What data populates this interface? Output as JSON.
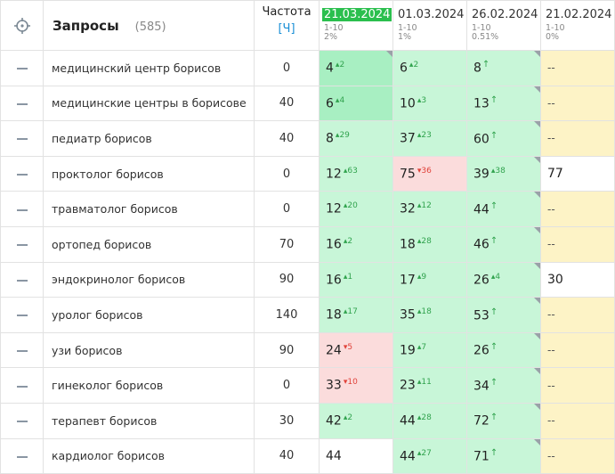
{
  "header": {
    "title": "Запросы",
    "count": "(585)",
    "freq_title": "Частота",
    "freq_unit": "[Ч]",
    "dates": [
      {
        "date": "21.03.2024",
        "range": "1-10",
        "pct": "2%",
        "active": true
      },
      {
        "date": "01.03.2024",
        "range": "1-10",
        "pct": "1%",
        "active": false
      },
      {
        "date": "26.02.2024",
        "range": "1-10",
        "pct": "0.51%",
        "active": false
      },
      {
        "date": "21.02.2024",
        "range": "1-10",
        "pct": "0%",
        "active": false
      }
    ]
  },
  "colors": {
    "top3": "#a8efc2",
    "top10": "#c8f6d8",
    "worse": "#fbdcdc",
    "nodata": "#fdf3c6",
    "plain": "#ffffff"
  },
  "rows": [
    {
      "query": "медицинский центр борисов",
      "freq": "0",
      "cells": [
        {
          "pos": "4",
          "delta": "2",
          "dir": "up",
          "bg": "top3",
          "tri": true
        },
        {
          "pos": "6",
          "delta": "2",
          "dir": "up",
          "bg": "top10",
          "tri": false
        },
        {
          "pos": "8",
          "delta": "",
          "dir": "arrow",
          "bg": "top10",
          "tri": true
        },
        {
          "pos": "--",
          "delta": "",
          "dir": "",
          "bg": "nodata",
          "tri": false
        }
      ]
    },
    {
      "query": "медицинские центры в борисове",
      "freq": "40",
      "cells": [
        {
          "pos": "6",
          "delta": "4",
          "dir": "up",
          "bg": "top3",
          "tri": false
        },
        {
          "pos": "10",
          "delta": "3",
          "dir": "up",
          "bg": "top10",
          "tri": false
        },
        {
          "pos": "13",
          "delta": "",
          "dir": "arrow",
          "bg": "top10",
          "tri": true
        },
        {
          "pos": "--",
          "delta": "",
          "dir": "",
          "bg": "nodata",
          "tri": false
        }
      ]
    },
    {
      "query": "педиатр борисов",
      "freq": "40",
      "cells": [
        {
          "pos": "8",
          "delta": "29",
          "dir": "up",
          "bg": "top10",
          "tri": false
        },
        {
          "pos": "37",
          "delta": "23",
          "dir": "up",
          "bg": "top10",
          "tri": false
        },
        {
          "pos": "60",
          "delta": "",
          "dir": "arrow",
          "bg": "top10",
          "tri": true
        },
        {
          "pos": "--",
          "delta": "",
          "dir": "",
          "bg": "nodata",
          "tri": false
        }
      ]
    },
    {
      "query": "проктолог борисов",
      "freq": "0",
      "cells": [
        {
          "pos": "12",
          "delta": "63",
          "dir": "up",
          "bg": "top10",
          "tri": false
        },
        {
          "pos": "75",
          "delta": "36",
          "dir": "down",
          "bg": "worse",
          "tri": false
        },
        {
          "pos": "39",
          "delta": "38",
          "dir": "up",
          "bg": "top10",
          "tri": true
        },
        {
          "pos": "77",
          "delta": "",
          "dir": "",
          "bg": "plain",
          "tri": false
        }
      ]
    },
    {
      "query": "травматолог борисов",
      "freq": "0",
      "cells": [
        {
          "pos": "12",
          "delta": "20",
          "dir": "up",
          "bg": "top10",
          "tri": false
        },
        {
          "pos": "32",
          "delta": "12",
          "dir": "up",
          "bg": "top10",
          "tri": false
        },
        {
          "pos": "44",
          "delta": "",
          "dir": "arrow",
          "bg": "top10",
          "tri": true
        },
        {
          "pos": "--",
          "delta": "",
          "dir": "",
          "bg": "nodata",
          "tri": false
        }
      ]
    },
    {
      "query": "ортопед борисов",
      "freq": "70",
      "cells": [
        {
          "pos": "16",
          "delta": "2",
          "dir": "up",
          "bg": "top10",
          "tri": false
        },
        {
          "pos": "18",
          "delta": "28",
          "dir": "up",
          "bg": "top10",
          "tri": false
        },
        {
          "pos": "46",
          "delta": "",
          "dir": "arrow",
          "bg": "top10",
          "tri": true
        },
        {
          "pos": "--",
          "delta": "",
          "dir": "",
          "bg": "nodata",
          "tri": false
        }
      ]
    },
    {
      "query": "эндокринолог борисов",
      "freq": "90",
      "cells": [
        {
          "pos": "16",
          "delta": "1",
          "dir": "up",
          "bg": "top10",
          "tri": false
        },
        {
          "pos": "17",
          "delta": "9",
          "dir": "up",
          "bg": "top10",
          "tri": false
        },
        {
          "pos": "26",
          "delta": "4",
          "dir": "up",
          "bg": "top10",
          "tri": true
        },
        {
          "pos": "30",
          "delta": "",
          "dir": "",
          "bg": "plain",
          "tri": false
        }
      ]
    },
    {
      "query": "уролог борисов",
      "freq": "140",
      "cells": [
        {
          "pos": "18",
          "delta": "17",
          "dir": "up",
          "bg": "top10",
          "tri": false
        },
        {
          "pos": "35",
          "delta": "18",
          "dir": "up",
          "bg": "top10",
          "tri": false
        },
        {
          "pos": "53",
          "delta": "",
          "dir": "arrow",
          "bg": "top10",
          "tri": true
        },
        {
          "pos": "--",
          "delta": "",
          "dir": "",
          "bg": "nodata",
          "tri": false
        }
      ]
    },
    {
      "query": "узи борисов",
      "freq": "90",
      "cells": [
        {
          "pos": "24",
          "delta": "5",
          "dir": "down",
          "bg": "worse",
          "tri": false
        },
        {
          "pos": "19",
          "delta": "7",
          "dir": "up",
          "bg": "top10",
          "tri": false
        },
        {
          "pos": "26",
          "delta": "",
          "dir": "arrow",
          "bg": "top10",
          "tri": true
        },
        {
          "pos": "--",
          "delta": "",
          "dir": "",
          "bg": "nodata",
          "tri": false
        }
      ]
    },
    {
      "query": "гинеколог борисов",
      "freq": "0",
      "cells": [
        {
          "pos": "33",
          "delta": "10",
          "dir": "down",
          "bg": "worse",
          "tri": false
        },
        {
          "pos": "23",
          "delta": "11",
          "dir": "up",
          "bg": "top10",
          "tri": false
        },
        {
          "pos": "34",
          "delta": "",
          "dir": "arrow",
          "bg": "top10",
          "tri": true
        },
        {
          "pos": "--",
          "delta": "",
          "dir": "",
          "bg": "nodata",
          "tri": false
        }
      ]
    },
    {
      "query": "терапевт борисов",
      "freq": "30",
      "cells": [
        {
          "pos": "42",
          "delta": "2",
          "dir": "up",
          "bg": "top10",
          "tri": false
        },
        {
          "pos": "44",
          "delta": "28",
          "dir": "up",
          "bg": "top10",
          "tri": false
        },
        {
          "pos": "72",
          "delta": "",
          "dir": "arrow",
          "bg": "top10",
          "tri": true
        },
        {
          "pos": "--",
          "delta": "",
          "dir": "",
          "bg": "nodata",
          "tri": false
        }
      ]
    },
    {
      "query": "кардиолог борисов",
      "freq": "40",
      "cells": [
        {
          "pos": "44",
          "delta": "",
          "dir": "",
          "bg": "plain",
          "tri": false
        },
        {
          "pos": "44",
          "delta": "27",
          "dir": "up",
          "bg": "top10",
          "tri": false
        },
        {
          "pos": "71",
          "delta": "",
          "dir": "arrow",
          "bg": "top10",
          "tri": true
        },
        {
          "pos": "--",
          "delta": "",
          "dir": "",
          "bg": "nodata",
          "tri": false
        }
      ]
    }
  ]
}
